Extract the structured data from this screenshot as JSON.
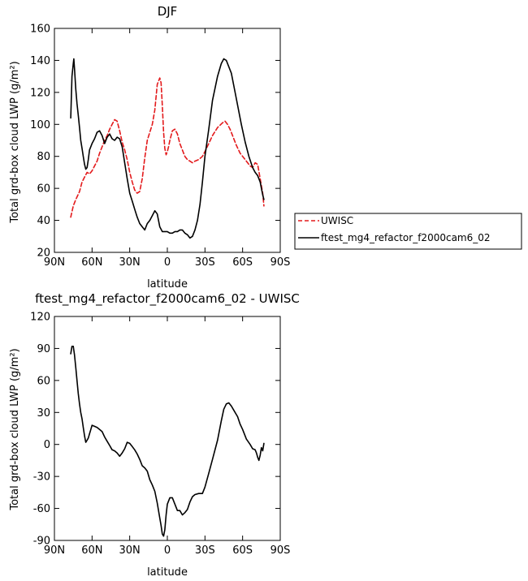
{
  "chart_data": [
    {
      "type": "line",
      "title": "DJF",
      "xlabel": "latitude",
      "ylabel": "Total grd-box cloud LWP (g/m²)",
      "xlim": [
        90,
        -90
      ],
      "ylim": [
        20,
        160
      ],
      "xticks": [
        90,
        60,
        30,
        0,
        -30,
        -60,
        -90
      ],
      "xtick_labels": [
        "90N",
        "60N",
        "30N",
        "0",
        "30S",
        "60S",
        "90S"
      ],
      "yticks": [
        20,
        40,
        60,
        80,
        100,
        120,
        140,
        160
      ],
      "ytick_labels": [
        "20",
        "40",
        "60",
        "80",
        "100",
        "120",
        "140",
        "160"
      ],
      "legend": "outside-right",
      "series": [
        {
          "name": "UWISC",
          "color": "#e31a1c",
          "dashed": true,
          "x": [
            77,
            75,
            73,
            70,
            68,
            66,
            64,
            62,
            60,
            58,
            56,
            54,
            52,
            50,
            48,
            46,
            44,
            42,
            40,
            38,
            36,
            34,
            32,
            30,
            28,
            26,
            24,
            22,
            20,
            18,
            16,
            14,
            12,
            10,
            8,
            6,
            5,
            4,
            3,
            2,
            1,
            0,
            -1,
            -2,
            -4,
            -6,
            -8,
            -10,
            -12,
            -14,
            -16,
            -18,
            -20,
            -22,
            -25,
            -28,
            -30,
            -33,
            -36,
            -40,
            -44,
            -46,
            -48,
            -50,
            -52,
            -55,
            -58,
            -60,
            -63,
            -66,
            -68,
            -70,
            -72,
            -74,
            -76,
            -77
          ],
          "y": [
            42,
            49,
            53,
            58,
            64,
            67,
            70,
            69,
            71,
            74,
            77,
            82,
            86,
            90,
            93,
            97,
            100,
            103,
            102,
            96,
            89,
            84,
            78,
            70,
            64,
            59,
            57,
            58,
            66,
            79,
            90,
            95,
            100,
            109,
            125,
            129,
            126,
            112,
            95,
            85,
            81,
            83,
            86,
            90,
            96,
            97,
            94,
            88,
            84,
            80,
            78,
            77,
            76,
            77,
            78,
            80,
            83,
            88,
            93,
            98,
            101,
            102,
            100,
            97,
            93,
            87,
            82,
            80,
            77,
            74,
            73,
            76,
            75,
            66,
            57,
            49
          ]
        },
        {
          "name": "ftest_mg4_refactor_f2000cam6_02",
          "color": "#000000",
          "dashed": false,
          "x": [
            77,
            76,
            75,
            74.5,
            74,
            73,
            72,
            71,
            70,
            69,
            68,
            67,
            66,
            65,
            64,
            63,
            62,
            60,
            58,
            56,
            54,
            52,
            50,
            48,
            46,
            44,
            42,
            40,
            38,
            36,
            34,
            32,
            30,
            28,
            26,
            24,
            22,
            20,
            18,
            16,
            14,
            12,
            10,
            8,
            6,
            4,
            2,
            0,
            -2,
            -4,
            -6,
            -8,
            -10,
            -12,
            -14,
            -16,
            -18,
            -20,
            -22,
            -24,
            -26,
            -28,
            -30,
            -33,
            -36,
            -40,
            -43,
            -45,
            -47,
            -49,
            -51,
            -53,
            -56,
            -59,
            -62,
            -65,
            -68,
            -70,
            -72,
            -74,
            -75,
            -76,
            -77
          ],
          "y": [
            104,
            130,
            138,
            141,
            135,
            122,
            113,
            106,
            98,
            90,
            85,
            80,
            75,
            72,
            73,
            78,
            84,
            88,
            91,
            95,
            96,
            93,
            88,
            92,
            94,
            91,
            90,
            92,
            91,
            86,
            76,
            66,
            57,
            52,
            47,
            42,
            38,
            36,
            34,
            38,
            40,
            43,
            46,
            44,
            36,
            33,
            33,
            33,
            32,
            32,
            33,
            33,
            34,
            34,
            32,
            31,
            29,
            30,
            34,
            40,
            50,
            64,
            80,
            97,
            115,
            130,
            138,
            141,
            140,
            136,
            132,
            124,
            112,
            100,
            89,
            80,
            73,
            70,
            68,
            64,
            60,
            56,
            53
          ]
        }
      ]
    },
    {
      "type": "line",
      "title": "ftest_mg4_refactor_f2000cam6_02 - UWISC",
      "xlabel": "latitude",
      "ylabel": "Total grd-box cloud LWP (g/m²)",
      "xlim": [
        90,
        -90
      ],
      "ylim": [
        -90,
        120
      ],
      "xticks": [
        90,
        60,
        30,
        0,
        -30,
        -60,
        -90
      ],
      "xtick_labels": [
        "90N",
        "60N",
        "30N",
        "0",
        "30S",
        "60S",
        "90S"
      ],
      "yticks": [
        -90,
        -60,
        -30,
        0,
        30,
        60,
        90,
        120
      ],
      "ytick_labels": [
        "-90",
        "-60",
        "-30",
        "0",
        "30",
        "60",
        "90",
        "120"
      ],
      "series": [
        {
          "color": "#000000",
          "dashed": false,
          "x": [
            77,
            76,
            75,
            74,
            73,
            72,
            71,
            70,
            69,
            68,
            67,
            66,
            65,
            64,
            63,
            62,
            61,
            60,
            58,
            56,
            54,
            52,
            50,
            48,
            46,
            44,
            42,
            40,
            38,
            36,
            34,
            32,
            30,
            28,
            26,
            24,
            22,
            20,
            18,
            16,
            14,
            12,
            10,
            8,
            6,
            5,
            4,
            3,
            2,
            1,
            0,
            -2,
            -4,
            -6,
            -8,
            -10,
            -12,
            -14,
            -16,
            -18,
            -20,
            -22,
            -25,
            -28,
            -30,
            -33,
            -36,
            -40,
            -43,
            -45,
            -47,
            -49,
            -51,
            -53,
            -56,
            -58,
            -60,
            -63,
            -66,
            -68,
            -70,
            -71,
            -72,
            -73,
            -74,
            -75,
            -76,
            -77
          ],
          "y": [
            85,
            92,
            92,
            84,
            72,
            60,
            48,
            38,
            30,
            24,
            16,
            8,
            2,
            4,
            6,
            10,
            14,
            18,
            17,
            16,
            14,
            12,
            7,
            3,
            -1,
            -5,
            -6,
            -8,
            -11,
            -8,
            -4,
            2,
            1,
            -2,
            -5,
            -9,
            -14,
            -20,
            -22,
            -25,
            -33,
            -38,
            -44,
            -55,
            -69,
            -76,
            -84,
            -86,
            -80,
            -66,
            -56,
            -50,
            -50,
            -56,
            -62,
            -62,
            -66,
            -64,
            -61,
            -54,
            -49,
            -47,
            -46,
            -46,
            -40,
            -27,
            -14,
            4,
            22,
            33,
            38,
            39,
            36,
            32,
            26,
            19,
            14,
            5,
            0,
            -4,
            -5,
            -8,
            -12,
            -15,
            -10,
            -3,
            -6,
            1
          ]
        }
      ]
    }
  ]
}
